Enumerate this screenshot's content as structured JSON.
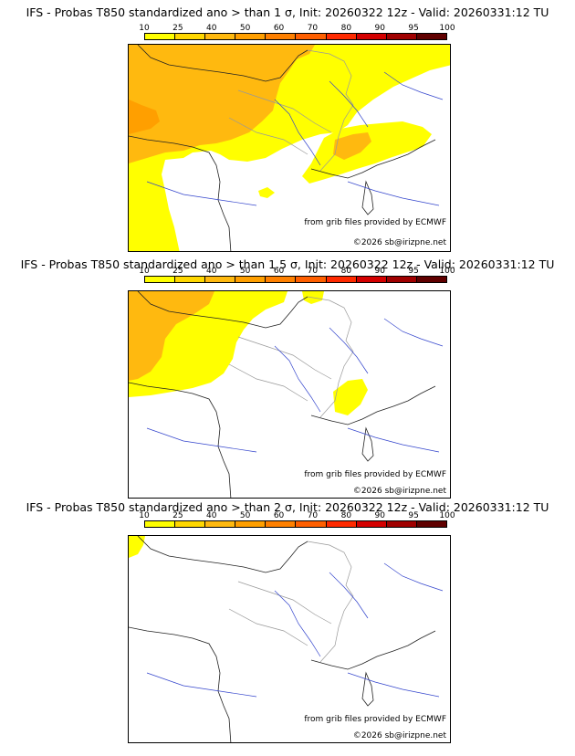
{
  "palette": [
    "#ffff00",
    "#ffd700",
    "#ffb90f",
    "#ff9f00",
    "#ff8000",
    "#ff5f00",
    "#ff2a00",
    "#d40000",
    "#a00000",
    "#600000"
  ],
  "contour_levels": [
    "10",
    "25",
    "40",
    "50",
    "60",
    "70",
    "80",
    "90",
    "95",
    "100"
  ],
  "credits": {
    "source": "from grib files provided by ECMWF",
    "copyright": "©2026 sb@irizpne.net"
  },
  "panels": [
    {
      "title": "IFS - Probas T850  standardized ano > than 1 σ, Init: 20260322 12z - Valid: 20260331:12 TU",
      "threshold_sigma": 1
    },
    {
      "title": "IFS - Probas T850  standardized ano > than 1.5 σ, Init: 20260322 12z - Valid: 20260331:12 TU",
      "threshold_sigma": 1.5
    },
    {
      "title": "IFS - Probas T850  standardized ano > than 2 σ, Init: 20260322 12z - Valid: 20260331:12 TU",
      "threshold_sigma": 2
    }
  ]
}
